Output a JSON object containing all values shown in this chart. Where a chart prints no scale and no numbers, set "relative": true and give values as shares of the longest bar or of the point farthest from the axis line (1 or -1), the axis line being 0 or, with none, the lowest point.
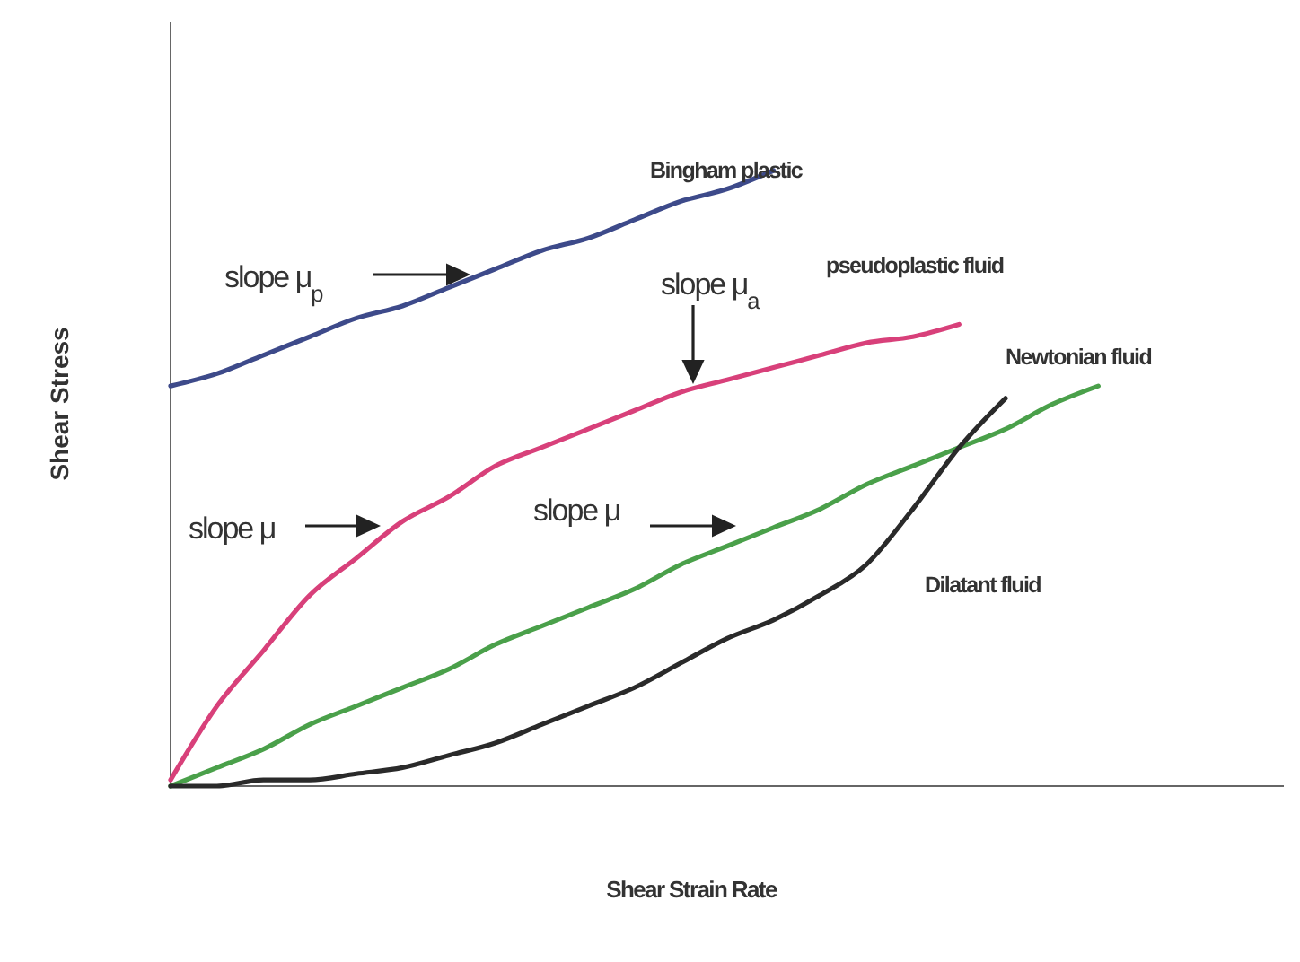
{
  "chart_data": {
    "type": "line",
    "relative": true,
    "xlabel": "Shear Strain Rate",
    "ylabel": "Shear Stress",
    "legend": false,
    "marker": "none",
    "line_style": "solid",
    "categories": [
      null,
      null,
      null,
      null,
      null,
      null,
      null,
      null,
      null,
      null,
      null,
      null,
      null,
      null,
      null,
      null,
      null,
      null,
      null,
      null,
      null,
      null,
      null,
      null,
      null
    ],
    "series": [
      {
        "name": "Bingham plastic",
        "color": "#3d4a8a",
        "values": [
          0.65,
          0.67,
          0.7,
          0.73,
          0.76,
          0.78,
          0.81,
          0.84,
          0.87,
          0.89,
          0.92,
          0.95,
          0.97,
          1.0,
          null,
          null,
          null,
          null,
          null,
          null,
          null,
          null,
          null,
          null,
          null
        ]
      },
      {
        "name": "pseudoplastic fluid",
        "color": "#d8407a",
        "values": [
          0.01,
          0.13,
          0.22,
          0.31,
          0.37,
          0.43,
          0.47,
          0.52,
          0.55,
          0.58,
          0.61,
          0.64,
          0.66,
          0.68,
          0.7,
          0.72,
          0.73,
          0.75,
          null,
          null,
          null,
          null,
          null,
          null,
          null
        ]
      },
      {
        "name": "Newtonian fluid",
        "color": "#4aa04a",
        "values": [
          0,
          0.03,
          0.06,
          0.1,
          0.13,
          0.16,
          0.19,
          0.23,
          0.26,
          0.29,
          0.32,
          0.36,
          0.39,
          0.42,
          0.45,
          0.49,
          0.52,
          0.55,
          0.58,
          0.62,
          0.65,
          null,
          null,
          null,
          null
        ]
      },
      {
        "name": "Dilatant fluid",
        "color": "#2a2a2a",
        "values": [
          0,
          0,
          0.01,
          0.01,
          0.02,
          0.03,
          0.05,
          0.07,
          0.1,
          0.13,
          0.16,
          0.2,
          0.24,
          0.27,
          0.31,
          0.36,
          0.45,
          0.55,
          0.63,
          null,
          null,
          null,
          null,
          null,
          null
        ]
      }
    ],
    "annotations": [
      "slope μ$_{p}$",
      "slope μ$_{a}$",
      "slope μ",
      "slope μ"
    ]
  }
}
